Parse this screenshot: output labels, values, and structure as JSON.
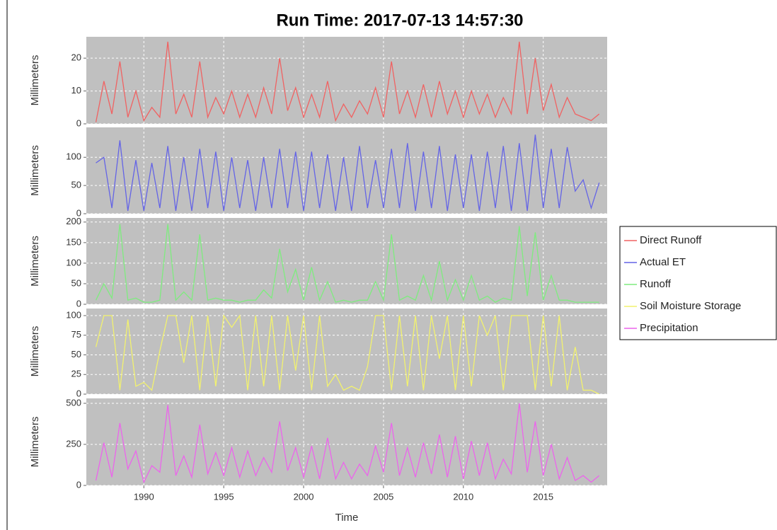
{
  "chart_data": {
    "type": "line",
    "title": "Run Time: 2017-07-13 14:57:30",
    "xlabel": "Time",
    "legend": "right",
    "grid": true,
    "xlim": [
      1986.4,
      2019
    ],
    "xticks": [
      1990,
      1995,
      2000,
      2005,
      2010,
      2015
    ],
    "x": [
      1987,
      1987.5,
      1988,
      1988.5,
      1989,
      1989.5,
      1990,
      1990.5,
      1991,
      1991.5,
      1992,
      1992.5,
      1993,
      1993.5,
      1994,
      1994.5,
      1995,
      1995.5,
      1996,
      1996.5,
      1997,
      1997.5,
      1998,
      1998.5,
      1999,
      1999.5,
      2000,
      2000.5,
      2001,
      2001.5,
      2002,
      2002.5,
      2003,
      2003.5,
      2004,
      2004.5,
      2005,
      2005.5,
      2006,
      2006.5,
      2007,
      2007.5,
      2008,
      2008.5,
      2009,
      2009.5,
      2010,
      2010.5,
      2011,
      2011.5,
      2012,
      2012.5,
      2013,
      2013.5,
      2014,
      2014.5,
      2015,
      2015.5,
      2016,
      2016.5,
      2017,
      2017.5,
      2018,
      2018.5
    ],
    "panels": [
      {
        "ylabel": "Millimeters",
        "ylim": [
          0,
          26.5
        ],
        "yticks": [
          0,
          10,
          20
        ],
        "series": [
          {
            "name": "Direct Runoff",
            "color": "#f06262",
            "values": [
              0.5,
              13,
              3,
              19,
              2,
              10,
              1,
              5,
              2,
              25,
              3,
              9,
              2,
              19,
              2,
              8,
              3,
              10,
              2,
              9,
              2,
              11,
              3,
              20,
              4,
              11,
              2,
              9,
              2,
              13,
              1,
              6,
              2,
              7,
              3,
              11,
              2,
              19,
              3,
              10,
              2,
              12,
              2,
              13,
              3,
              10,
              2,
              10,
              3,
              9,
              2,
              8,
              3,
              25,
              3,
              20,
              4,
              12,
              2,
              8,
              3,
              2,
              1,
              3
            ]
          }
        ]
      },
      {
        "ylabel": "Millimeters",
        "ylim": [
          0,
          153
        ],
        "yticks": [
          0,
          50,
          100
        ],
        "series": [
          {
            "name": "Actual ET",
            "color": "#6464e6",
            "values": [
              90,
              100,
              10,
              130,
              5,
              95,
              5,
              90,
              10,
              120,
              5,
              100,
              5,
              115,
              10,
              110,
              5,
              100,
              10,
              95,
              5,
              100,
              10,
              115,
              10,
              110,
              5,
              110,
              10,
              105,
              5,
              100,
              5,
              120,
              10,
              95,
              10,
              115,
              10,
              125,
              5,
              110,
              10,
              120,
              5,
              105,
              10,
              105,
              5,
              110,
              10,
              120,
              5,
              125,
              5,
              140,
              10,
              115,
              10,
              118,
              40,
              60,
              10,
              55
            ]
          }
        ]
      },
      {
        "ylabel": "Millimeters",
        "ylim": [
          0,
          210
        ],
        "yticks": [
          0,
          50,
          100,
          150,
          200
        ],
        "series": [
          {
            "name": "Runoff",
            "color": "#7eec7e",
            "values": [
              10,
              50,
              15,
              195,
              10,
              15,
              5,
              5,
              10,
              195,
              10,
              30,
              10,
              170,
              10,
              15,
              10,
              10,
              5,
              10,
              10,
              35,
              15,
              135,
              30,
              85,
              10,
              90,
              10,
              55,
              5,
              10,
              5,
              10,
              10,
              55,
              10,
              170,
              10,
              20,
              10,
              70,
              10,
              105,
              10,
              60,
              10,
              70,
              10,
              20,
              5,
              15,
              10,
              190,
              20,
              175,
              10,
              70,
              10,
              10,
              5,
              5,
              5,
              5
            ]
          }
        ]
      },
      {
        "ylabel": "Millimeters",
        "ylim": [
          0,
          109
        ],
        "yticks": [
          0,
          25,
          50,
          75,
          100
        ],
        "series": [
          {
            "name": "Soil Moisture Storage",
            "color": "#f2f26e",
            "values": [
              60,
              100,
              100,
              5,
              95,
              10,
              15,
              5,
              55,
              100,
              100,
              40,
              100,
              5,
              100,
              10,
              100,
              85,
              100,
              5,
              100,
              10,
              100,
              5,
              100,
              30,
              100,
              5,
              100,
              10,
              25,
              5,
              10,
              5,
              35,
              100,
              100,
              5,
              100,
              10,
              100,
              5,
              100,
              45,
              100,
              5,
              100,
              10,
              100,
              75,
              100,
              5,
              100,
              100,
              100,
              5,
              100,
              10,
              100,
              5,
              60,
              5,
              5,
              0
            ]
          }
        ]
      },
      {
        "ylabel": "Millimeters",
        "ylim": [
          0,
          530
        ],
        "yticks": [
          0,
          250,
          500
        ],
        "series": [
          {
            "name": "Precipitation",
            "color": "#ec64ec",
            "values": [
              30,
              260,
              50,
              380,
              100,
              210,
              20,
              120,
              80,
              490,
              60,
              180,
              50,
              370,
              70,
              200,
              60,
              230,
              50,
              210,
              60,
              170,
              80,
              390,
              90,
              230,
              50,
              240,
              40,
              290,
              40,
              140,
              40,
              130,
              60,
              240,
              80,
              380,
              60,
              230,
              50,
              260,
              70,
              310,
              50,
              300,
              40,
              270,
              60,
              260,
              40,
              160,
              70,
              500,
              80,
              390,
              60,
              250,
              40,
              170,
              30,
              60,
              20,
              60
            ]
          }
        ]
      }
    ]
  }
}
